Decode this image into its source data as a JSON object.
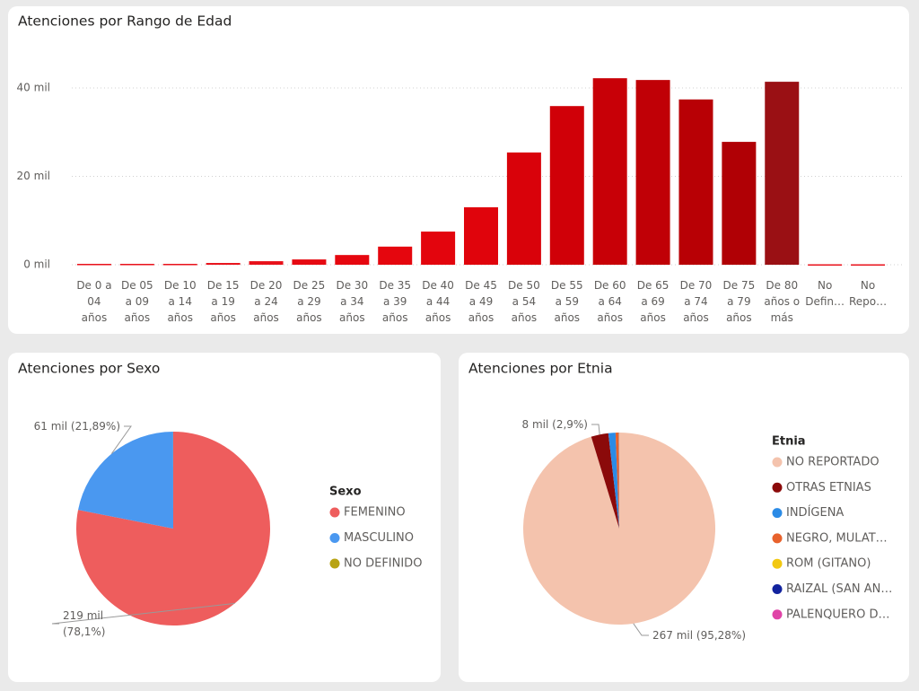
{
  "chart_data": [
    {
      "type": "bar",
      "title": "Atenciones por Rango de Edad",
      "categories": [
        "De 0 a 04 años",
        "De 05 a 09 años",
        "De 10 a 14 años",
        "De 15 a 19 años",
        "De 20 a 24 años",
        "De 25 a 29 años",
        "De 30 a 34 años",
        "De 35 a 39 años",
        "De 40 a 44 años",
        "De 45 a 49 años",
        "De 50 a 54 años",
        "De 55 a 59 años",
        "De 60 a 64 años",
        "De 65 a 69 años",
        "De 70 a 74 años",
        "De 75 a 79 años",
        "De 80 años o más",
        "No Defin…",
        "No Repo…"
      ],
      "values": [
        200,
        200,
        200,
        400,
        800,
        1200,
        2200,
        4100,
        7500,
        13000,
        25400,
        35900,
        42200,
        41800,
        37400,
        27800,
        41400,
        100,
        100
      ],
      "colors": [
        "#e8111a",
        "#e8111a",
        "#e8111a",
        "#e8111a",
        "#e8111a",
        "#e60a12",
        "#e6070f",
        "#e5060e",
        "#e3050d",
        "#e0040c",
        "#d9020a",
        "#d00008",
        "#c80007",
        "#c00006",
        "#b80005",
        "#b00005",
        "#9a1014",
        "#e8111a",
        "#e8111a"
      ],
      "ylim": [
        0,
        48000
      ],
      "yticks": [
        {
          "value": 0,
          "label": "0 mil"
        },
        {
          "value": 20000,
          "label": "20 mil"
        },
        {
          "value": 40000,
          "label": "40 mil"
        }
      ],
      "grid": true
    },
    {
      "type": "pie",
      "title": "Atenciones por Sexo",
      "legend_title": "Sexo",
      "categories": [
        "FEMENINO",
        "MASCULINO",
        "NO DEFINIDO"
      ],
      "values": [
        219200,
        61450,
        30
      ],
      "value_labels": [
        "219 mil (78,1%)",
        "61 mil (21,89%)",
        null
      ],
      "colors": [
        "#ee5d5d",
        "#4a98f0",
        "#b8a313"
      ]
    },
    {
      "type": "pie",
      "title": "Atenciones por Etnia",
      "legend_title": "Etnia",
      "categories": [
        "NO REPORTADO",
        "OTRAS ETNIAS",
        "INDÍGENA",
        "NEGRO, MULAT…",
        "ROM (GITANO)",
        "RAIZAL (SAN AN…",
        "PALENQUERO D…"
      ],
      "values": [
        267000,
        8130,
        3360,
        1400,
        140,
        110,
        80
      ],
      "value_labels": [
        "267 mil (95,28%)",
        "8 mil (2,9%)",
        null,
        null,
        null,
        null,
        null
      ],
      "colors": [
        "#f4c3ad",
        "#8b0a0a",
        "#2b8be6",
        "#e8622c",
        "#f2c811",
        "#12239e",
        "#e044a7"
      ]
    }
  ]
}
